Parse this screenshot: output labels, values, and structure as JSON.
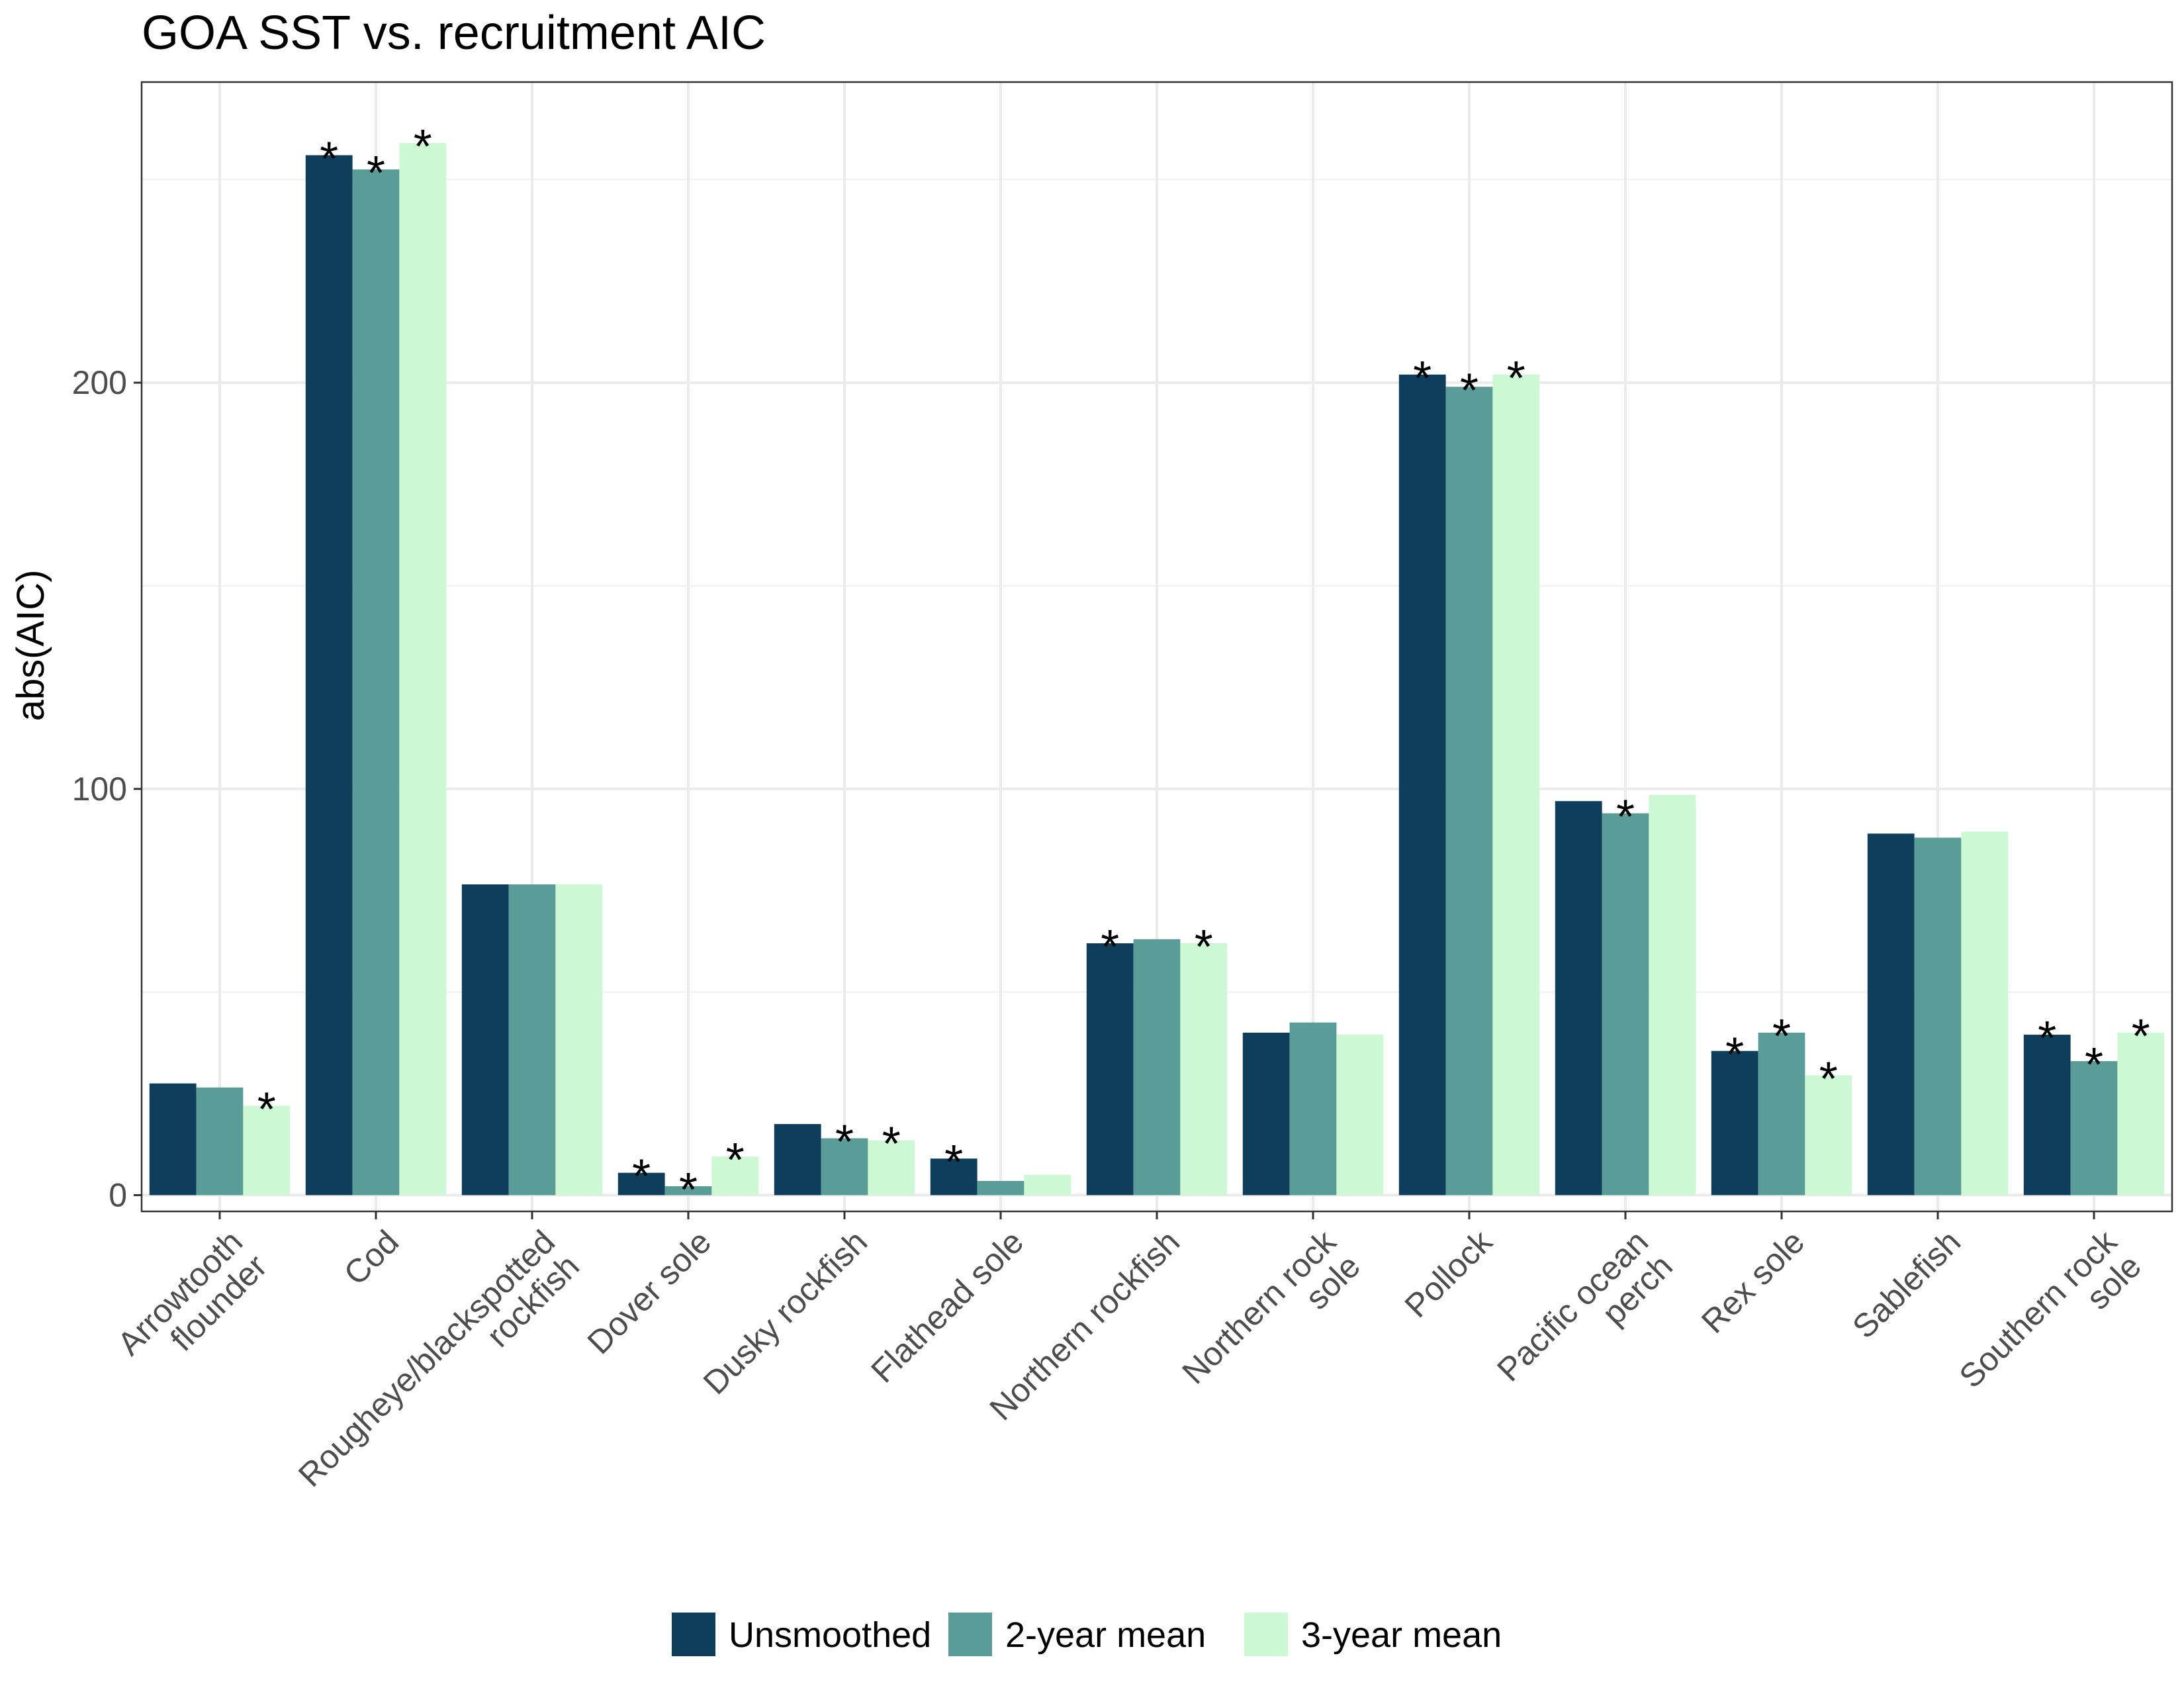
{
  "chart_data": {
    "type": "bar",
    "title": "GOA SST vs. recruitment AIC",
    "xlabel": "",
    "ylabel": "abs(AIC)",
    "ylim": [
      -4,
      274
    ],
    "yticks": [
      0,
      100,
      200
    ],
    "grid": true,
    "legend_position": "bottom",
    "categories": [
      [
        "Arrowtooth",
        "flounder"
      ],
      [
        "Cod"
      ],
      [
        "Rougheye/blackspotted",
        "rockfish"
      ],
      [
        "Dover sole"
      ],
      [
        "Dusky rockfish"
      ],
      [
        "Flathead sole"
      ],
      [
        "Northern rockfish"
      ],
      [
        "Northern rock",
        "sole"
      ],
      [
        "Pollock"
      ],
      [
        "Pacific ocean",
        "perch"
      ],
      [
        "Rex sole"
      ],
      [
        "Sablefish"
      ],
      [
        "Southern rock",
        "sole"
      ]
    ],
    "series": [
      {
        "name": "Unsmoothed",
        "color": "#0f3e5d",
        "values": [
          27.5,
          256,
          76.5,
          5.5,
          17.5,
          9,
          62,
          40,
          202,
          97,
          35.5,
          89,
          39.5
        ],
        "significant": [
          false,
          true,
          false,
          true,
          false,
          true,
          true,
          false,
          true,
          false,
          true,
          false,
          true
        ]
      },
      {
        "name": "2-year mean",
        "color": "#5a9c97",
        "values": [
          26.5,
          252.5,
          76.5,
          2.2,
          14,
          3.5,
          63,
          42.5,
          199,
          94,
          40,
          88,
          33
        ],
        "significant": [
          false,
          true,
          false,
          true,
          true,
          false,
          false,
          false,
          true,
          true,
          true,
          false,
          true
        ]
      },
      {
        "name": "3-year mean",
        "color": "#ccf8d4",
        "values": [
          22,
          259,
          76.5,
          9.5,
          13.5,
          5,
          62,
          39.5,
          202,
          98.5,
          29.5,
          89.5,
          40
        ],
        "significant": [
          true,
          true,
          false,
          true,
          true,
          false,
          true,
          false,
          true,
          false,
          true,
          false,
          true
        ]
      }
    ],
    "significance_marker": "*"
  }
}
